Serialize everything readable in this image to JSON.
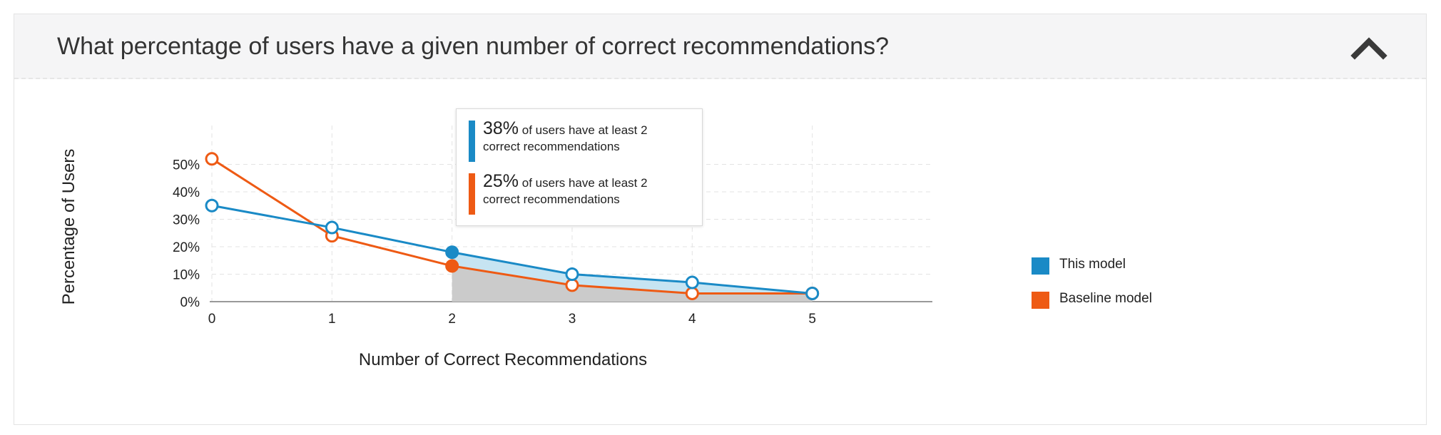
{
  "panel": {
    "title": "What percentage of users have a given number of correct recommendations?",
    "collapse_icon": "chevron-up-icon"
  },
  "chart_data": {
    "type": "line",
    "xlabel": "Number of Correct Recommendations",
    "ylabel": "Percentage of Users",
    "x": [
      0,
      1,
      2,
      3,
      4,
      5
    ],
    "xlim": [
      0,
      6
    ],
    "ylim": [
      0,
      55
    ],
    "y_ticks": [
      0,
      10,
      20,
      30,
      40,
      50
    ],
    "y_tick_labels": [
      "0%",
      "10%",
      "20%",
      "30%",
      "40%",
      "50%"
    ],
    "x_tick_labels": [
      "0",
      "1",
      "2",
      "3",
      "4",
      "5"
    ],
    "grid": true,
    "highlight_from_x": 2,
    "series": [
      {
        "name": "This model",
        "color": "#1a8ac6",
        "fill": "#c6e4f2",
        "values": [
          35,
          27,
          18,
          10,
          7,
          3
        ]
      },
      {
        "name": "Baseline model",
        "color": "#ee5a14",
        "fill": "#cbcbcb",
        "values": [
          52,
          24,
          13,
          6,
          3,
          3
        ]
      }
    ],
    "legend": {
      "position": "right"
    }
  },
  "tooltip": {
    "rows": [
      {
        "pct": "38%",
        "text": "of users have at least 2 correct recommendations",
        "color": "#1a8ac6"
      },
      {
        "pct": "25%",
        "text": "of users have at least 2 correct recommendations",
        "color": "#ee5a14"
      }
    ]
  }
}
